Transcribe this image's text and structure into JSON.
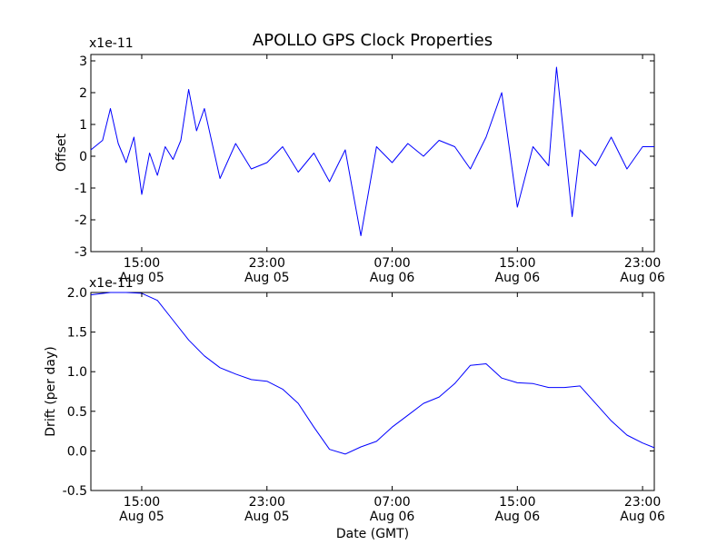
{
  "figure": {
    "title": "APOLLO GPS Clock Properties",
    "xlabel": "Date (GMT)"
  },
  "chart_data": [
    {
      "type": "line",
      "ylabel": "Offset",
      "y_multiplier": "x1e-11",
      "x_ticks": [
        {
          "time": "15:00",
          "date": "Aug 05"
        },
        {
          "time": "23:00",
          "date": "Aug 05"
        },
        {
          "time": "07:00",
          "date": "Aug 06"
        },
        {
          "time": "15:00",
          "date": "Aug 06"
        },
        {
          "time": "23:00",
          "date": "Aug 06"
        }
      ],
      "xlim": [
        "Aug 05 11:45",
        "Aug 06 23:45"
      ],
      "ylim": [
        -3,
        3.2
      ],
      "y_ticks": [
        -3,
        -2,
        -1,
        0,
        1,
        2,
        3
      ],
      "color": "#0000ff",
      "series": [
        {
          "x": [
            "Aug 05 11:45",
            "Aug 05 12:30",
            "Aug 05 13:00",
            "Aug 05 13:30",
            "Aug 05 14:00",
            "Aug 05 14:30",
            "Aug 05 15:00",
            "Aug 05 15:30",
            "Aug 05 16:00",
            "Aug 05 16:30",
            "Aug 05 17:00",
            "Aug 05 17:30",
            "Aug 05 18:00",
            "Aug 05 18:30",
            "Aug 05 19:00",
            "Aug 05 20:00",
            "Aug 05 21:00",
            "Aug 05 22:00",
            "Aug 05 23:00",
            "Aug 06 00:00",
            "Aug 06 01:00",
            "Aug 06 02:00",
            "Aug 06 03:00",
            "Aug 06 04:00",
            "Aug 06 05:00",
            "Aug 06 06:00",
            "Aug 06 07:00",
            "Aug 06 08:00",
            "Aug 06 09:00",
            "Aug 06 10:00",
            "Aug 06 11:00",
            "Aug 06 12:00",
            "Aug 06 13:00",
            "Aug 06 14:00",
            "Aug 06 15:00",
            "Aug 06 16:00",
            "Aug 06 17:00",
            "Aug 06 17:30",
            "Aug 06 18:00",
            "Aug 06 18:30",
            "Aug 06 19:00",
            "Aug 06 20:00",
            "Aug 06 21:00",
            "Aug 06 22:00",
            "Aug 06 23:00",
            "Aug 06 23:45"
          ],
          "y": [
            0.2,
            0.5,
            1.5,
            0.4,
            -0.2,
            0.6,
            -1.2,
            0.1,
            -0.6,
            0.3,
            -0.1,
            0.5,
            2.1,
            0.8,
            1.5,
            -0.7,
            0.4,
            -0.4,
            -0.2,
            0.3,
            -0.5,
            0.1,
            -0.8,
            0.2,
            -2.5,
            0.3,
            -0.2,
            0.4,
            0.0,
            0.5,
            0.3,
            -0.4,
            0.6,
            2.0,
            -1.6,
            0.3,
            -0.3,
            2.8,
            0.5,
            -1.9,
            0.2,
            -0.3,
            0.6,
            -0.4,
            0.3,
            0.3
          ]
        }
      ]
    },
    {
      "type": "line",
      "ylabel": "Drift (per day)",
      "y_multiplier": "x1e-11",
      "x_ticks": [
        {
          "time": "15:00",
          "date": "Aug 05"
        },
        {
          "time": "23:00",
          "date": "Aug 05"
        },
        {
          "time": "07:00",
          "date": "Aug 06"
        },
        {
          "time": "15:00",
          "date": "Aug 06"
        },
        {
          "time": "23:00",
          "date": "Aug 06"
        }
      ],
      "xlim": [
        "Aug 05 11:45",
        "Aug 06 23:45"
      ],
      "ylim": [
        -0.5,
        2.0
      ],
      "y_ticks": [
        -0.5,
        0.0,
        0.5,
        1.0,
        1.5,
        2.0
      ],
      "color": "#0000ff",
      "series": [
        {
          "x": [
            "Aug 05 11:45",
            "Aug 05 13:00",
            "Aug 05 14:00",
            "Aug 05 15:00",
            "Aug 05 16:00",
            "Aug 05 17:00",
            "Aug 05 18:00",
            "Aug 05 19:00",
            "Aug 05 20:00",
            "Aug 05 21:00",
            "Aug 05 22:00",
            "Aug 05 23:00",
            "Aug 06 00:00",
            "Aug 06 01:00",
            "Aug 06 02:00",
            "Aug 06 03:00",
            "Aug 06 04:00",
            "Aug 06 05:00",
            "Aug 06 06:00",
            "Aug 06 07:00",
            "Aug 06 08:00",
            "Aug 06 09:00",
            "Aug 06 10:00",
            "Aug 06 11:00",
            "Aug 06 12:00",
            "Aug 06 13:00",
            "Aug 06 14:00",
            "Aug 06 15:00",
            "Aug 06 16:00",
            "Aug 06 17:00",
            "Aug 06 18:00",
            "Aug 06 19:00",
            "Aug 06 20:00",
            "Aug 06 21:00",
            "Aug 06 22:00",
            "Aug 06 23:00",
            "Aug 06 23:45"
          ],
          "y": [
            1.97,
            2.0,
            2.0,
            1.99,
            1.9,
            1.65,
            1.4,
            1.2,
            1.05,
            0.97,
            0.9,
            0.88,
            0.78,
            0.6,
            0.3,
            0.02,
            -0.04,
            0.05,
            0.12,
            0.3,
            0.45,
            0.6,
            0.68,
            0.85,
            1.08,
            1.1,
            0.92,
            0.86,
            0.85,
            0.8,
            0.8,
            0.82,
            0.6,
            0.38,
            0.2,
            0.1,
            0.04
          ]
        }
      ]
    }
  ]
}
